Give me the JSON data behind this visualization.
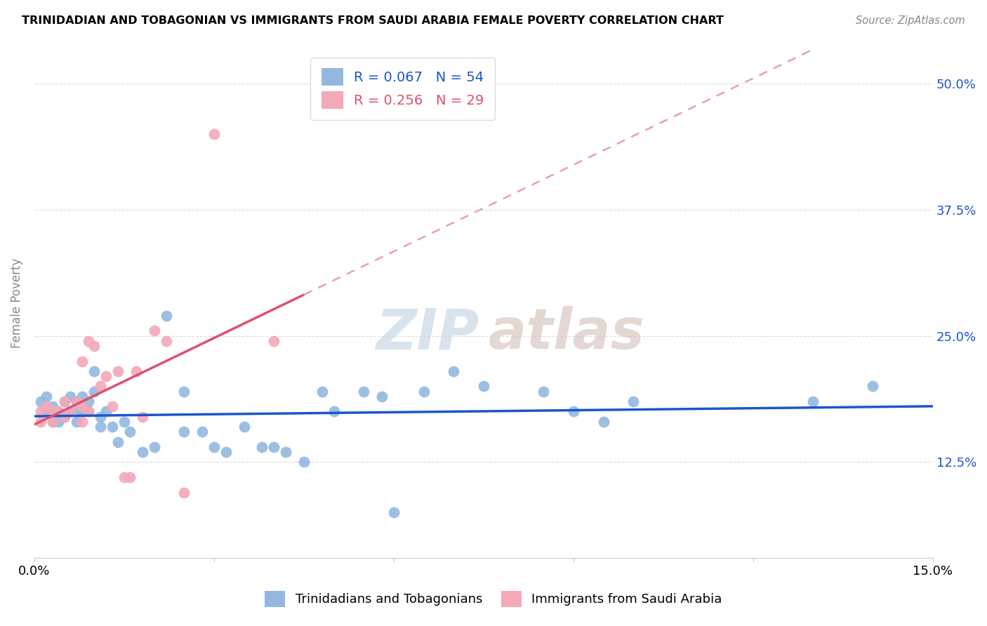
{
  "title": "TRINIDADIAN AND TOBAGONIAN VS IMMIGRANTS FROM SAUDI ARABIA FEMALE POVERTY CORRELATION CHART",
  "source": "Source: ZipAtlas.com",
  "ylabel": "Female Poverty",
  "yticks": [
    "12.5%",
    "25.0%",
    "37.5%",
    "50.0%"
  ],
  "ytick_vals": [
    0.125,
    0.25,
    0.375,
    0.5
  ],
  "xmin": 0.0,
  "xmax": 0.15,
  "ymin": 0.03,
  "ymax": 0.535,
  "legend_blue_R": "R = 0.067",
  "legend_blue_N": "N = 54",
  "legend_pink_R": "R = 0.256",
  "legend_pink_N": "N = 29",
  "blue_color": "#92B8E0",
  "pink_color": "#F4A8B8",
  "blue_line_color": "#1A56CC",
  "pink_line_color": "#E05070",
  "pink_dash_color": "#E8A0B0",
  "watermark_zip_color": "#C8D8E8",
  "watermark_atlas_color": "#D8C8C0",
  "blue_scatter_x": [
    0.001,
    0.002,
    0.002,
    0.003,
    0.003,
    0.004,
    0.004,
    0.005,
    0.005,
    0.006,
    0.006,
    0.007,
    0.007,
    0.007,
    0.008,
    0.008,
    0.009,
    0.009,
    0.01,
    0.01,
    0.011,
    0.011,
    0.012,
    0.013,
    0.014,
    0.015,
    0.016,
    0.018,
    0.02,
    0.022,
    0.025,
    0.025,
    0.028,
    0.03,
    0.032,
    0.035,
    0.038,
    0.04,
    0.042,
    0.045,
    0.048,
    0.05,
    0.055,
    0.058,
    0.06,
    0.065,
    0.07,
    0.075,
    0.085,
    0.09,
    0.095,
    0.1,
    0.13,
    0.14
  ],
  "blue_scatter_y": [
    0.185,
    0.175,
    0.19,
    0.165,
    0.18,
    0.175,
    0.165,
    0.185,
    0.17,
    0.19,
    0.175,
    0.185,
    0.175,
    0.165,
    0.19,
    0.175,
    0.185,
    0.175,
    0.215,
    0.195,
    0.17,
    0.16,
    0.175,
    0.16,
    0.145,
    0.165,
    0.155,
    0.135,
    0.14,
    0.27,
    0.195,
    0.155,
    0.155,
    0.14,
    0.135,
    0.16,
    0.14,
    0.14,
    0.135,
    0.125,
    0.195,
    0.175,
    0.195,
    0.19,
    0.075,
    0.195,
    0.215,
    0.2,
    0.195,
    0.175,
    0.165,
    0.185,
    0.185,
    0.2
  ],
  "pink_scatter_x": [
    0.001,
    0.001,
    0.002,
    0.003,
    0.003,
    0.004,
    0.005,
    0.005,
    0.006,
    0.007,
    0.008,
    0.008,
    0.008,
    0.009,
    0.009,
    0.01,
    0.011,
    0.012,
    0.013,
    0.014,
    0.015,
    0.016,
    0.017,
    0.018,
    0.02,
    0.022,
    0.025,
    0.03,
    0.04
  ],
  "pink_scatter_y": [
    0.175,
    0.165,
    0.18,
    0.175,
    0.165,
    0.175,
    0.185,
    0.17,
    0.175,
    0.185,
    0.18,
    0.165,
    0.225,
    0.245,
    0.175,
    0.24,
    0.2,
    0.21,
    0.18,
    0.215,
    0.11,
    0.11,
    0.215,
    0.17,
    0.255,
    0.245,
    0.095,
    0.45,
    0.245
  ],
  "pink_line_x0": 0.0,
  "pink_line_x_solid_end": 0.045,
  "pink_line_x_dash_end": 0.15,
  "pink_line_y0": 0.163,
  "pink_line_slope": 2.0,
  "blue_line_y0": 0.168,
  "blue_line_slope": 0.17
}
